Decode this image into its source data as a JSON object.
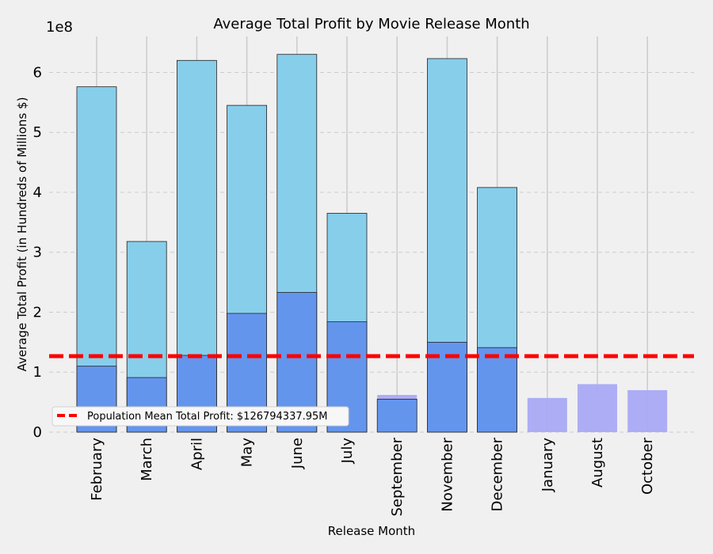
{
  "chart_data": {
    "type": "bar",
    "title": "Average Total Profit by Movie Release Month",
    "xlabel": "Release Month",
    "ylabel": "Average Total Profit (in Hundreds of Millions $)",
    "y_offset_text": "1e8",
    "ylim": [
      0,
      6.6
    ],
    "yticks": [
      0,
      1,
      2,
      3,
      4,
      5,
      6
    ],
    "categories": [
      "February",
      "March",
      "April",
      "May",
      "June",
      "July",
      "September",
      "November",
      "December",
      "January",
      "August",
      "October"
    ],
    "series": [
      {
        "values": [
          5.76,
          3.18,
          6.2,
          5.45,
          6.3,
          3.65,
          0.62,
          6.23,
          4.08,
          0.57,
          0.8,
          0.7
        ]
      },
      {
        "values": [
          1.1,
          0.91,
          1.28,
          1.98,
          2.33,
          1.84,
          0.55,
          1.5,
          1.41,
          null,
          null,
          null
        ]
      }
    ],
    "reference_line": {
      "value": 1.2679433795,
      "label": "Population Mean Total Profit: $126794337.95M"
    },
    "legend_position": "lower-left",
    "grid": true,
    "colors": {
      "background": "#f0f0f0",
      "grid": "#cbcbcb",
      "bar_light_blue": "#87ceeb",
      "bar_mid_blue": "#6495ed",
      "bar_faded": "#a9a9f5",
      "reference_line": "#ff0000",
      "bar_edge": "#222222"
    }
  }
}
